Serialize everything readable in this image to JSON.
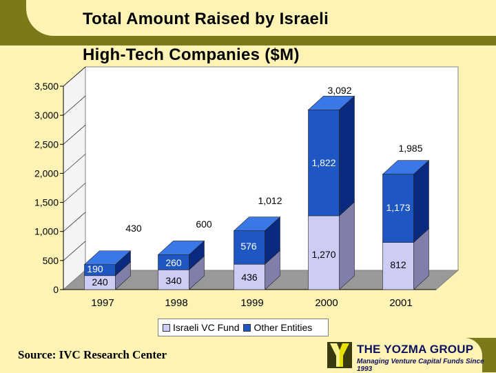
{
  "header": {
    "title_line1": "Total Amount Raised by Israeli",
    "title_line2": "High-Tech Companies ($M)"
  },
  "footer": {
    "source": "Source: IVC Research Center",
    "brand": "THE YOZMA GROUP",
    "tagline": "Managing Venture Capital Funds Since 1993"
  },
  "colors": {
    "israeli_vc": "#ccccf5",
    "other": "#1f57c2",
    "background": "#fdf3b4",
    "band": "#7a7a1a"
  },
  "chart_data": {
    "type": "bar",
    "stacked": true,
    "title": "Total Amount Raised by Israeli High-Tech Companies ($M)",
    "categories": [
      "1997",
      "1998",
      "1999",
      "2000",
      "2001"
    ],
    "series": [
      {
        "name": "Israeli VC Fund",
        "values": [
          240,
          340,
          436,
          1270,
          812
        ],
        "labels": [
          "240",
          "340",
          "436",
          "1,270",
          "812"
        ]
      },
      {
        "name": "Other Entities",
        "values": [
          190,
          260,
          576,
          1822,
          1173
        ],
        "labels": [
          "190",
          "260",
          "576",
          "1,822",
          "1,173"
        ]
      }
    ],
    "totals": [
      430,
      600,
      1012,
      3092,
      1985
    ],
    "total_labels": [
      "430",
      "600",
      "1,012",
      "3,092",
      "1,985"
    ],
    "yticks": [
      0,
      500,
      1000,
      1500,
      2000,
      2500,
      3000,
      3500
    ],
    "ytick_labels": [
      "0",
      "500",
      "1,000",
      "1,500",
      "2,000",
      "2,500",
      "3,000",
      "3,500"
    ],
    "ylim": [
      0,
      3500
    ],
    "legend": [
      "Israeli VC Fund",
      "Other Entities"
    ],
    "legend_position": "bottom"
  }
}
